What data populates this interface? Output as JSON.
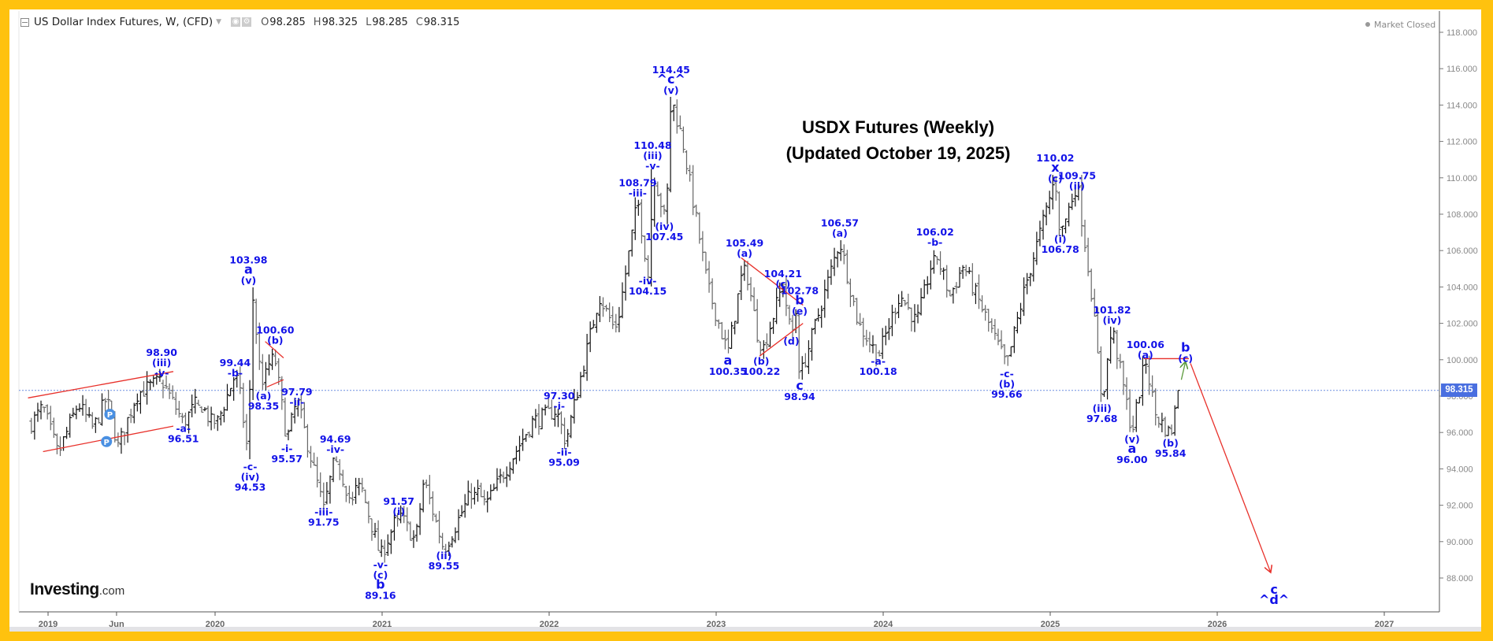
{
  "header": {
    "instrument": "US Dollar Index Futures, W, (CFD)",
    "open_label": "O",
    "open": "98.285",
    "high_label": "H",
    "high": "98.325",
    "low_label": "L",
    "low": "98.285",
    "close_label": "C",
    "close": "98.315",
    "status": "Market Closed"
  },
  "branding": {
    "logo_main": "Investing",
    "logo_domain": ".com"
  },
  "title_lines": [
    "USDX Futures (Weekly)",
    "(Updated October 19, 2025)"
  ],
  "last_price_tag": "98.315",
  "colors": {
    "annotation": "#1212e8",
    "trendline": "#e8302a",
    "projection_arrow": "#e8302a",
    "up_arrow": "#5a9a3a",
    "price_line": "#6f8fe0",
    "bar": "#111111",
    "border": "#FFC20E"
  },
  "chart_data": {
    "type": "ohlc-bar",
    "title": "USDX Futures (Weekly) (Updated October 19, 2025)",
    "ylim": [
      86,
      119
    ],
    "xlim": [
      2018.82,
      2027.35
    ],
    "y_ticks": [
      "88.000",
      "90.000",
      "92.000",
      "94.000",
      "96.000",
      "98.000",
      "100.000",
      "102.000",
      "104.000",
      "106.000",
      "108.000",
      "110.000",
      "112.000",
      "114.000",
      "116.000",
      "118.000"
    ],
    "x_ticks": [
      {
        "label": "2019",
        "date": 2019.0
      },
      {
        "label": "Jun",
        "date": 2019.41
      },
      {
        "label": "2020",
        "date": 2020.0
      },
      {
        "label": "2021",
        "date": 2021.0
      },
      {
        "label": "2022",
        "date": 2022.0
      },
      {
        "label": "2023",
        "date": 2023.0
      },
      {
        "label": "2024",
        "date": 2024.0
      },
      {
        "label": "2025",
        "date": 2025.0
      },
      {
        "label": "2026",
        "date": 2026.0
      },
      {
        "label": "2027",
        "date": 2027.0
      }
    ],
    "last_price": 98.315,
    "pivots": [
      [
        2018.9,
        96.5
      ],
      [
        2018.97,
        97.4
      ],
      [
        2019.06,
        94.8
      ],
      [
        2019.18,
        97.6
      ],
      [
        2019.27,
        96.2
      ],
      [
        2019.35,
        97.9
      ],
      [
        2019.42,
        95.2
      ],
      [
        2019.53,
        98.1
      ],
      [
        2019.68,
        98.9
      ],
      [
        2019.81,
        96.51
      ],
      [
        2019.9,
        97.8
      ],
      [
        2020.0,
        96.2
      ],
      [
        2020.13,
        99.44
      ],
      [
        2020.2,
        94.53
      ],
      [
        2020.22,
        103.98
      ],
      [
        2020.28,
        98.35
      ],
      [
        2020.35,
        100.6
      ],
      [
        2020.43,
        95.57
      ],
      [
        2020.49,
        97.79
      ],
      [
        2020.65,
        91.75
      ],
      [
        2020.72,
        94.69
      ],
      [
        2020.82,
        92.0
      ],
      [
        2020.86,
        93.5
      ],
      [
        2020.99,
        89.16
      ],
      [
        2021.1,
        91.57
      ],
      [
        2021.2,
        90.0
      ],
      [
        2021.25,
        93.4
      ],
      [
        2021.37,
        89.55
      ],
      [
        2021.55,
        93.0
      ],
      [
        2021.62,
        92.0
      ],
      [
        2021.9,
        96.6
      ],
      [
        2022.06,
        97.3
      ],
      [
        2022.09,
        95.09
      ],
      [
        2022.3,
        103.5
      ],
      [
        2022.4,
        101.5
      ],
      [
        2022.53,
        108.79
      ],
      [
        2022.6,
        104.15
      ],
      [
        2022.62,
        110.48
      ],
      [
        2022.7,
        107.45
      ],
      [
        2022.73,
        114.45
      ],
      [
        2022.8,
        112.0
      ],
      [
        2022.95,
        104.0
      ],
      [
        2023.07,
        100.35
      ],
      [
        2023.17,
        105.49
      ],
      [
        2023.27,
        100.22
      ],
      [
        2023.4,
        104.21
      ],
      [
        2023.45,
        101.2
      ],
      [
        2023.48,
        102.78
      ],
      [
        2023.5,
        98.94
      ],
      [
        2023.74,
        106.57
      ],
      [
        2023.85,
        102.0
      ],
      [
        2023.97,
        100.18
      ],
      [
        2024.1,
        103.6
      ],
      [
        2024.2,
        102.0
      ],
      [
        2024.31,
        106.02
      ],
      [
        2024.4,
        103.5
      ],
      [
        2024.48,
        105.2
      ],
      [
        2024.74,
        99.66
      ],
      [
        2024.85,
        104.0
      ],
      [
        2025.03,
        110.02
      ],
      [
        2025.06,
        106.78
      ],
      [
        2025.16,
        109.75
      ],
      [
        2025.25,
        103.5
      ],
      [
        2025.31,
        97.68
      ],
      [
        2025.37,
        101.82
      ],
      [
        2025.49,
        96.0
      ],
      [
        2025.57,
        100.06
      ],
      [
        2025.63,
        97.0
      ],
      [
        2025.72,
        95.84
      ],
      [
        2025.77,
        98.315
      ]
    ],
    "annotations": [
      {
        "date": 2019.68,
        "price": 98.9,
        "pos": "above",
        "lines": [
          "98.90",
          "(iii)",
          "-v-"
        ]
      },
      {
        "date": 2019.81,
        "price": 96.6,
        "pos": "below",
        "lines": [
          "-a-",
          "96.51"
        ]
      },
      {
        "date": 2020.12,
        "price": 98.9,
        "pos": "above",
        "lines": [
          "99.44",
          "-b-"
        ]
      },
      {
        "date": 2020.21,
        "price": 94.5,
        "pos": "below",
        "lines": [
          "-c-",
          "(iv)",
          "94.53"
        ]
      },
      {
        "date": 2020.2,
        "price": 104.0,
        "pos": "above",
        "lines": [
          "103.98",
          "a",
          "(v)"
        ]
      },
      {
        "date": 2020.29,
        "price": 98.4,
        "pos": "below",
        "lines": [
          "(a)",
          "98.35"
        ]
      },
      {
        "date": 2020.36,
        "price": 100.7,
        "pos": "above",
        "lines": [
          "100.60",
          "(b)"
        ]
      },
      {
        "date": 2020.49,
        "price": 97.3,
        "pos": "above",
        "lines": [
          "97.79",
          "-ii-"
        ]
      },
      {
        "date": 2020.43,
        "price": 95.5,
        "pos": "below",
        "lines": [
          "-i-",
          "95.57"
        ]
      },
      {
        "date": 2020.72,
        "price": 94.7,
        "pos": "above",
        "lines": [
          "94.69",
          "-iv-"
        ]
      },
      {
        "date": 2020.65,
        "price": 92.0,
        "pos": "below",
        "lines": [
          "-iii-",
          "91.75"
        ]
      },
      {
        "date": 2020.99,
        "price": 89.1,
        "pos": "below",
        "lines": [
          "-v-",
          "(c)",
          "b",
          "89.16"
        ]
      },
      {
        "date": 2021.1,
        "price": 91.3,
        "pos": "above",
        "lines": [
          "91.57",
          "(i)"
        ]
      },
      {
        "date": 2021.37,
        "price": 89.6,
        "pos": "below",
        "lines": [
          "(ii)",
          "89.55"
        ]
      },
      {
        "date": 2022.06,
        "price": 97.1,
        "pos": "above",
        "lines": [
          "97.30",
          "-i-"
        ]
      },
      {
        "date": 2022.09,
        "price": 95.3,
        "pos": "below",
        "lines": [
          "-ii-",
          "95.09"
        ]
      },
      {
        "date": 2022.53,
        "price": 108.8,
        "pos": "above",
        "lines": [
          "108.79",
          "-iii-"
        ]
      },
      {
        "date": 2022.59,
        "price": 104.7,
        "pos": "below",
        "lines": [
          "-iv-",
          "104.15"
        ]
      },
      {
        "date": 2022.62,
        "price": 110.3,
        "pos": "above",
        "lines": [
          "110.48",
          "(iii)",
          "-v-"
        ]
      },
      {
        "date": 2022.69,
        "price": 107.7,
        "pos": "below",
        "lines": [
          "(iv)",
          "107.45"
        ]
      },
      {
        "date": 2022.73,
        "price": 114.45,
        "pos": "above",
        "lines": [
          "114.45",
          "^c^",
          "(v)"
        ]
      },
      {
        "date": 2023.07,
        "price": 100.3,
        "pos": "below",
        "lines": [
          "a",
          "100.35"
        ]
      },
      {
        "date": 2023.17,
        "price": 105.5,
        "pos": "above",
        "lines": [
          "105.49",
          "(a)"
        ]
      },
      {
        "date": 2023.27,
        "price": 100.3,
        "pos": "below",
        "lines": [
          "(b)",
          "100.22"
        ]
      },
      {
        "date": 2023.4,
        "price": 103.8,
        "pos": "above",
        "lines": [
          "104.21",
          "(c)"
        ]
      },
      {
        "date": 2023.5,
        "price": 102.3,
        "pos": "above",
        "lines": [
          "102.78",
          "b",
          "(e)"
        ]
      },
      {
        "date": 2023.45,
        "price": 101.4,
        "pos": "below",
        "lines": [
          "(d)"
        ]
      },
      {
        "date": 2023.5,
        "price": 98.9,
        "pos": "below",
        "lines": [
          "c",
          "98.94"
        ]
      },
      {
        "date": 2023.74,
        "price": 106.6,
        "pos": "above",
        "lines": [
          "106.57",
          "(a)"
        ]
      },
      {
        "date": 2023.97,
        "price": 100.3,
        "pos": "below",
        "lines": [
          "-a-",
          "100.18"
        ]
      },
      {
        "date": 2024.31,
        "price": 106.1,
        "pos": "above",
        "lines": [
          "106.02",
          "-b-"
        ]
      },
      {
        "date": 2024.74,
        "price": 99.6,
        "pos": "below",
        "lines": [
          "-c-",
          "(b)",
          "99.66"
        ]
      },
      {
        "date": 2025.03,
        "price": 109.6,
        "pos": "above",
        "lines": [
          "110.02",
          "x",
          "(c)"
        ]
      },
      {
        "date": 2025.16,
        "price": 109.2,
        "pos": "above",
        "lines": [
          "109.75",
          "(ii)"
        ]
      },
      {
        "date": 2025.06,
        "price": 107.0,
        "pos": "below",
        "lines": [
          "(i)",
          "106.78"
        ]
      },
      {
        "date": 2025.37,
        "price": 101.8,
        "pos": "above",
        "lines": [
          "101.82",
          "(iv)"
        ]
      },
      {
        "date": 2025.31,
        "price": 97.7,
        "pos": "below",
        "lines": [
          "(iii)",
          "97.68"
        ]
      },
      {
        "date": 2025.49,
        "price": 96.0,
        "pos": "below",
        "lines": [
          "(v)",
          "a",
          "96.00"
        ]
      },
      {
        "date": 2025.57,
        "price": 99.9,
        "pos": "above",
        "lines": [
          "100.06",
          "(a)"
        ]
      },
      {
        "date": 2025.81,
        "price": 99.7,
        "pos": "above",
        "lines": [
          "b",
          "(c)"
        ]
      },
      {
        "date": 2025.72,
        "price": 95.8,
        "pos": "below",
        "lines": [
          "(b)",
          "95.84"
        ]
      },
      {
        "date": 2026.34,
        "price": 87.7,
        "pos": "below",
        "lines": [
          "c",
          "^d^"
        ]
      }
    ],
    "trendlines": [
      {
        "from": [
          2018.88,
          97.9
        ],
        "to": [
          2019.75,
          99.35
        ]
      },
      {
        "from": [
          2018.97,
          94.95
        ],
        "to": [
          2019.75,
          96.35
        ]
      },
      {
        "from": [
          2020.3,
          101.0
        ],
        "to": [
          2020.41,
          100.1
        ]
      },
      {
        "from": [
          2020.31,
          98.5
        ],
        "to": [
          2020.41,
          98.9
        ]
      },
      {
        "from": [
          2023.15,
          105.6
        ],
        "to": [
          2023.52,
          103.0
        ]
      },
      {
        "from": [
          2023.26,
          100.2
        ],
        "to": [
          2023.52,
          102.0
        ]
      },
      {
        "from": [
          2025.56,
          100.06
        ],
        "to": [
          2025.83,
          100.06
        ]
      }
    ],
    "projection_arrow": {
      "from": [
        2025.84,
        99.8
      ],
      "to": [
        2026.32,
        88.3
      ]
    },
    "up_arrow": {
      "from": [
        2025.785,
        98.9
      ],
      "to": [
        2025.81,
        99.9
      ]
    }
  }
}
